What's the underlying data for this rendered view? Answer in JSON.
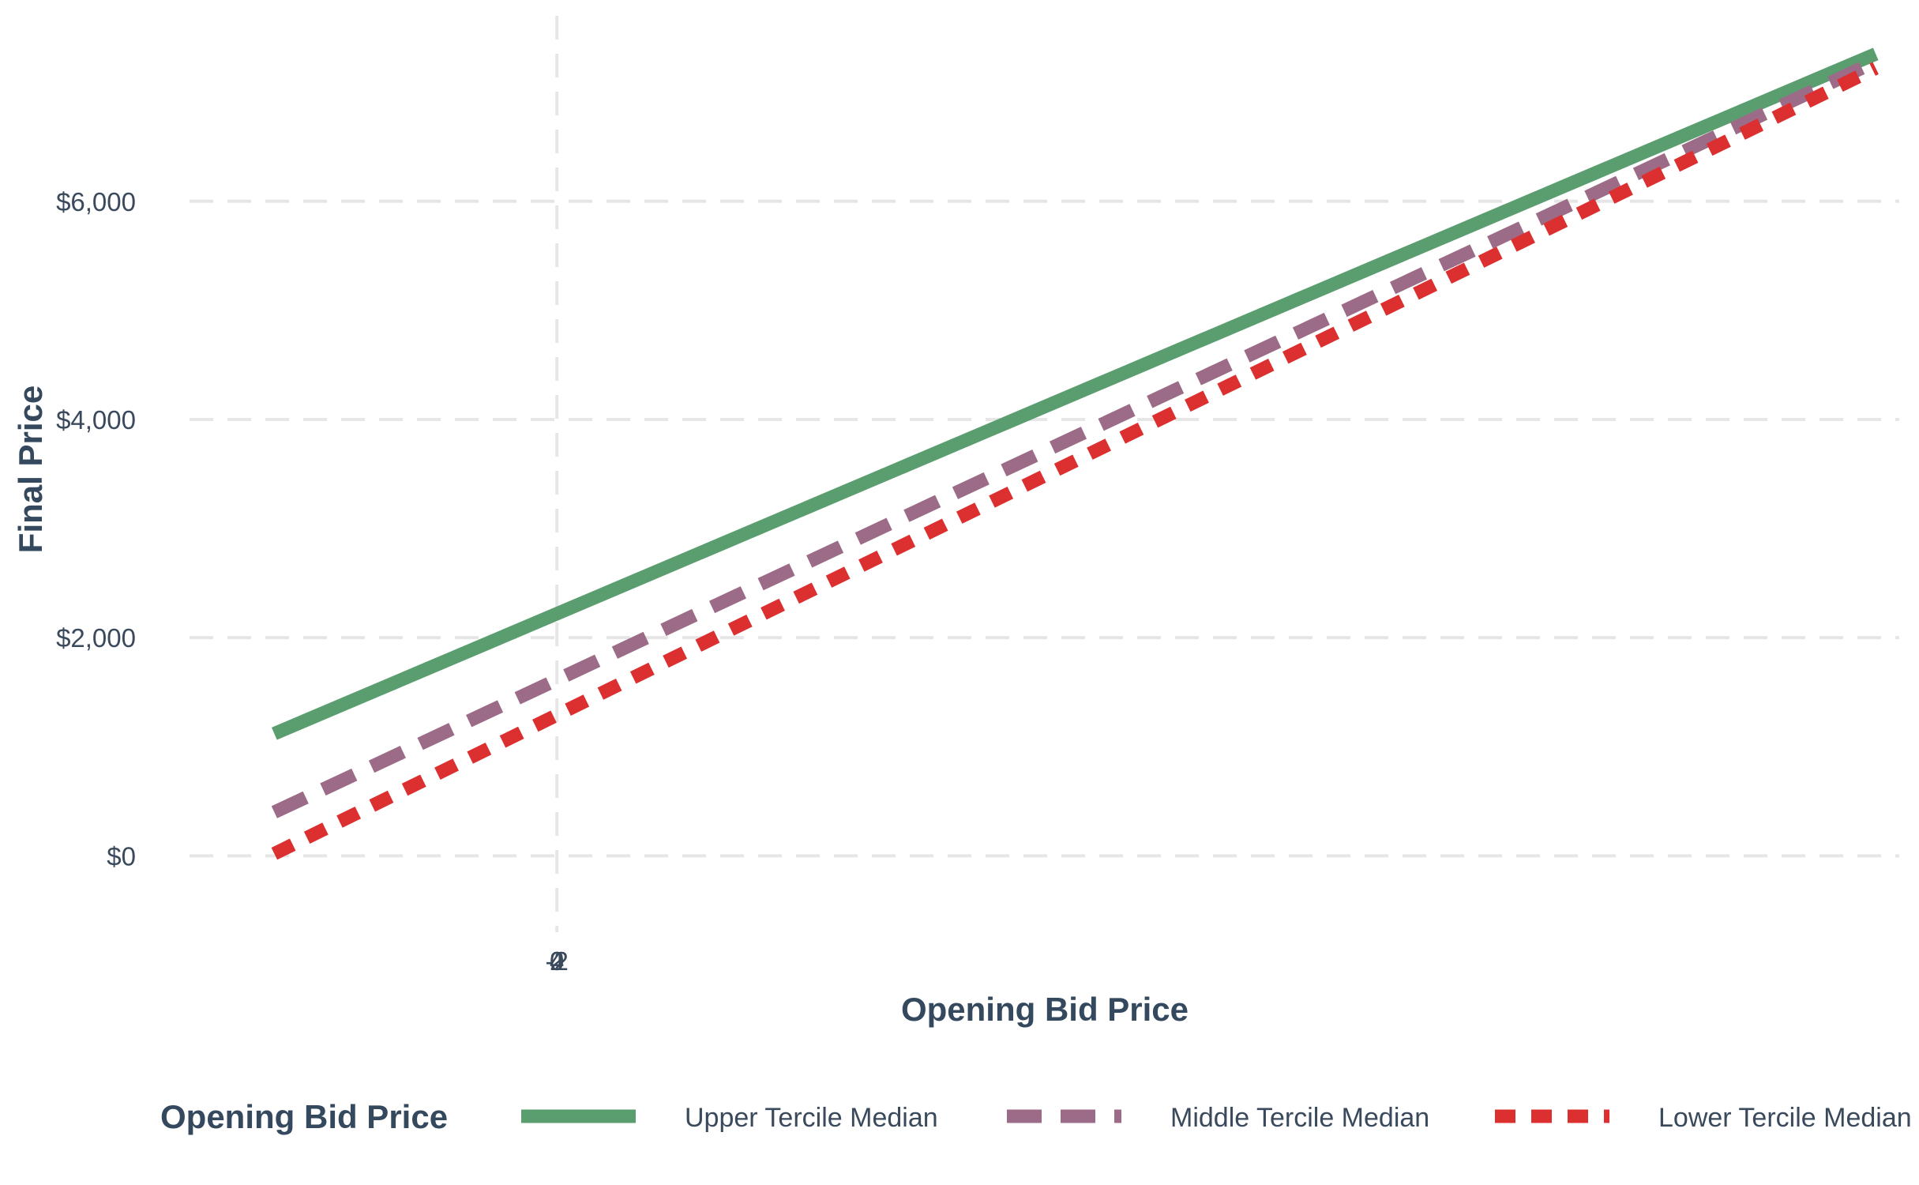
{
  "chart_data": {
    "type": "line",
    "xlabel": "Opening Bid Price",
    "ylabel": "Final Price",
    "x_tick_labels": [
      "-2",
      "0",
      "2",
      "4"
    ],
    "x_zero_tick": "0",
    "y_ticks": [
      0,
      2000,
      4000,
      6000
    ],
    "y_tick_labels": [
      "$0",
      "$2,000",
      "$4,000",
      "$6,000"
    ],
    "ylim": [
      -700,
      7700
    ],
    "legend": {
      "title": "Opening Bid Price",
      "placement": "bottom"
    },
    "grid": true,
    "series": [
      {
        "name": "Upper Tercile Median",
        "color": "#5a9e6f",
        "dash": "solid",
        "x": [
          -3,
          14
        ],
        "values": [
          1120,
          7350
        ]
      },
      {
        "name": "Middle Tercile Median",
        "color": "#9b6b87",
        "dash": "long-dash",
        "x": [
          -3,
          14
        ],
        "values": [
          400,
          7280
        ]
      },
      {
        "name": "Lower Tercile Median",
        "color": "#dc3030",
        "dash": "short-dash",
        "x": [
          -3,
          14
        ],
        "values": [
          20,
          7220
        ]
      }
    ],
    "xlim": [
      -3.9,
      14.25
    ]
  }
}
